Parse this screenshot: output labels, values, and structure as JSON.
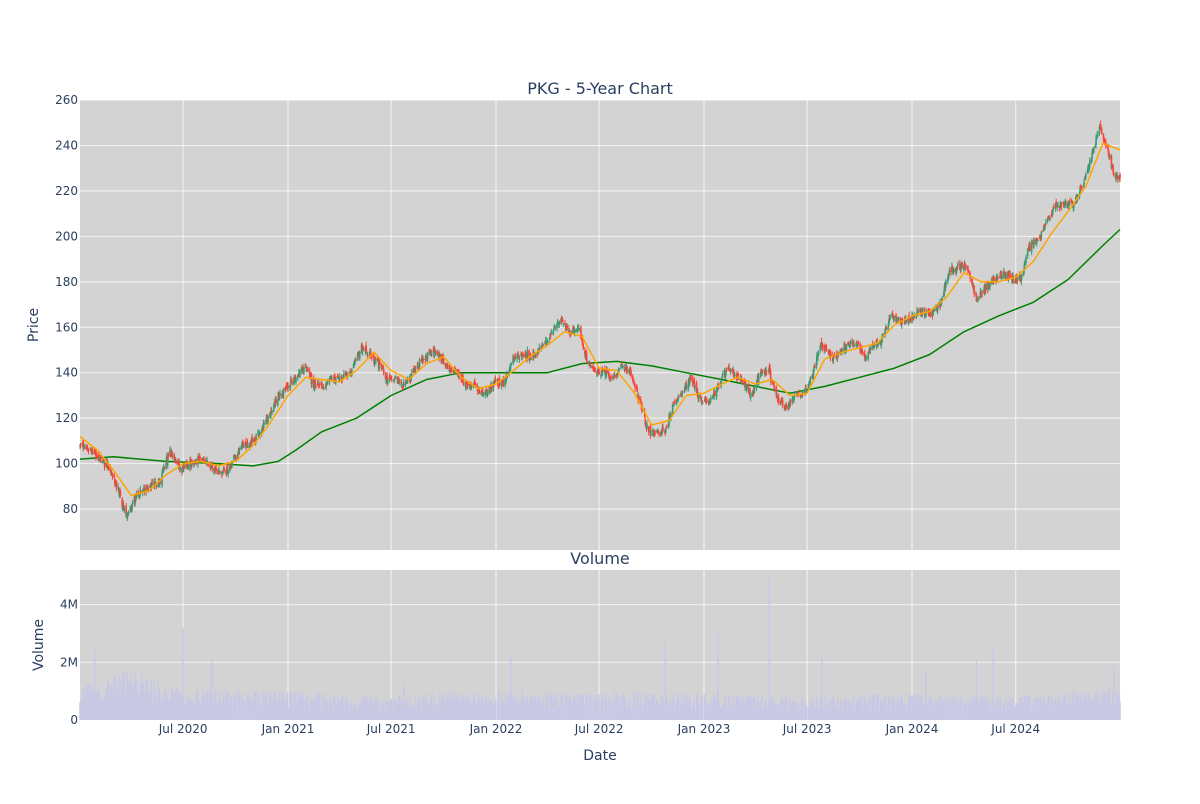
{
  "chart_data": [
    {
      "type": "candlestick",
      "title": "PKG - 5-Year Chart",
      "ylabel": "Price",
      "xlim": [
        "2020-01-02",
        "2024-12-31"
      ],
      "ylim": [
        62,
        260
      ],
      "y_ticks": [
        80,
        100,
        120,
        140,
        160,
        180,
        200,
        220,
        240,
        260
      ],
      "grid": true,
      "colors": {
        "up": "#3d9970",
        "down": "#ff4136",
        "ma_short": "#ffa500",
        "ma_long": "#008000",
        "plot_bg": "#d3d3d3"
      },
      "close_path": [
        [
          "2020-01-02",
          108
        ],
        [
          "2020-01-20",
          106
        ],
        [
          "2020-02-10",
          102
        ],
        [
          "2020-02-25",
          96
        ],
        [
          "2020-03-10",
          88
        ],
        [
          "2020-03-23",
          76
        ],
        [
          "2020-04-05",
          84
        ],
        [
          "2020-04-20",
          88
        ],
        [
          "2020-05-05",
          90
        ],
        [
          "2020-05-20",
          92
        ],
        [
          "2020-06-08",
          106
        ],
        [
          "2020-06-25",
          98
        ],
        [
          "2020-07-15",
          100
        ],
        [
          "2020-08-01",
          102
        ],
        [
          "2020-08-15",
          100
        ],
        [
          "2020-09-01",
          96
        ],
        [
          "2020-09-20",
          98
        ],
        [
          "2020-10-10",
          107
        ],
        [
          "2020-10-30",
          109
        ],
        [
          "2020-11-15",
          115
        ],
        [
          "2020-12-01",
          122
        ],
        [
          "2020-12-15",
          130
        ],
        [
          "2020-12-31",
          134
        ],
        [
          "2021-01-15",
          138
        ],
        [
          "2021-02-01",
          143
        ],
        [
          "2021-02-15",
          134
        ],
        [
          "2021-03-05",
          134
        ],
        [
          "2021-03-20",
          138
        ],
        [
          "2021-04-05",
          137
        ],
        [
          "2021-04-20",
          140
        ],
        [
          "2021-05-10",
          151
        ],
        [
          "2021-05-25",
          148
        ],
        [
          "2021-06-10",
          144
        ],
        [
          "2021-06-25",
          137
        ],
        [
          "2021-07-10",
          137
        ],
        [
          "2021-07-25",
          134
        ],
        [
          "2021-08-10",
          141
        ],
        [
          "2021-08-25",
          145
        ],
        [
          "2021-09-10",
          150
        ],
        [
          "2021-09-25",
          147
        ],
        [
          "2021-10-10",
          142
        ],
        [
          "2021-10-25",
          140
        ],
        [
          "2021-11-10",
          135
        ],
        [
          "2021-11-25",
          134
        ],
        [
          "2021-12-10",
          131
        ],
        [
          "2021-12-31",
          136
        ],
        [
          "2022-01-15",
          135
        ],
        [
          "2022-02-01",
          147
        ],
        [
          "2022-02-20",
          147
        ],
        [
          "2022-03-10",
          148
        ],
        [
          "2022-03-25",
          152
        ],
        [
          "2022-04-10",
          158
        ],
        [
          "2022-04-25",
          164
        ],
        [
          "2022-05-10",
          157
        ],
        [
          "2022-05-25",
          160
        ],
        [
          "2022-06-10",
          145
        ],
        [
          "2022-06-25",
          140
        ],
        [
          "2022-07-10",
          140
        ],
        [
          "2022-07-25",
          137
        ],
        [
          "2022-08-10",
          143
        ],
        [
          "2022-08-25",
          140
        ],
        [
          "2022-09-10",
          128
        ],
        [
          "2022-09-25",
          114
        ],
        [
          "2022-10-10",
          113
        ],
        [
          "2022-10-25",
          115
        ],
        [
          "2022-11-10",
          126
        ],
        [
          "2022-11-25",
          132
        ],
        [
          "2022-12-10",
          138
        ],
        [
          "2022-12-25",
          128
        ],
        [
          "2023-01-10",
          128
        ],
        [
          "2023-01-25",
          133
        ],
        [
          "2023-02-10",
          142
        ],
        [
          "2023-02-25",
          139
        ],
        [
          "2023-03-10",
          137
        ],
        [
          "2023-03-25",
          130
        ],
        [
          "2023-04-10",
          140
        ],
        [
          "2023-04-25",
          141
        ],
        [
          "2023-05-10",
          129
        ],
        [
          "2023-05-25",
          125
        ],
        [
          "2023-06-10",
          130
        ],
        [
          "2023-06-25",
          131
        ],
        [
          "2023-07-10",
          138
        ],
        [
          "2023-07-25",
          153
        ],
        [
          "2023-08-10",
          147
        ],
        [
          "2023-08-25",
          148
        ],
        [
          "2023-09-10",
          152
        ],
        [
          "2023-09-25",
          153
        ],
        [
          "2023-10-10",
          147
        ],
        [
          "2023-10-25",
          152
        ],
        [
          "2023-11-10",
          155
        ],
        [
          "2023-11-25",
          166
        ],
        [
          "2023-12-10",
          163
        ],
        [
          "2023-12-31",
          164
        ],
        [
          "2024-01-15",
          167
        ],
        [
          "2024-02-01",
          166
        ],
        [
          "2024-02-20",
          170
        ],
        [
          "2024-03-05",
          184
        ],
        [
          "2024-03-20",
          186
        ],
        [
          "2024-04-05",
          187
        ],
        [
          "2024-04-25",
          172
        ],
        [
          "2024-05-10",
          178
        ],
        [
          "2024-05-25",
          181
        ],
        [
          "2024-06-10",
          183
        ],
        [
          "2024-06-25",
          182
        ],
        [
          "2024-07-10",
          181
        ],
        [
          "2024-07-25",
          196
        ],
        [
          "2024-08-10",
          198
        ],
        [
          "2024-08-25",
          207
        ],
        [
          "2024-09-10",
          213
        ],
        [
          "2024-09-25",
          214
        ],
        [
          "2024-10-10",
          214
        ],
        [
          "2024-10-25",
          222
        ],
        [
          "2024-11-10",
          234
        ],
        [
          "2024-11-25",
          248
        ],
        [
          "2024-12-10",
          238
        ],
        [
          "2024-12-20",
          228
        ],
        [
          "2024-12-31",
          225
        ]
      ],
      "ma_short": [
        [
          "2020-01-02",
          112
        ],
        [
          "2020-02-01",
          106
        ],
        [
          "2020-03-01",
          97
        ],
        [
          "2020-04-01",
          86
        ],
        [
          "2020-05-01",
          88
        ],
        [
          "2020-06-01",
          95
        ],
        [
          "2020-07-01",
          100
        ],
        [
          "2020-08-01",
          101
        ],
        [
          "2020-09-01",
          99
        ],
        [
          "2020-10-01",
          101
        ],
        [
          "2020-11-01",
          108
        ],
        [
          "2020-12-01",
          118
        ],
        [
          "2021-01-01",
          130
        ],
        [
          "2021-02-01",
          138
        ],
        [
          "2021-03-01",
          137
        ],
        [
          "2021-04-01",
          136
        ],
        [
          "2021-05-01",
          141
        ],
        [
          "2021-06-01",
          149
        ],
        [
          "2021-07-01",
          141
        ],
        [
          "2021-08-01",
          137
        ],
        [
          "2021-09-01",
          144
        ],
        [
          "2021-10-01",
          147
        ],
        [
          "2021-11-01",
          138
        ],
        [
          "2021-12-01",
          133
        ],
        [
          "2022-01-01",
          135
        ],
        [
          "2022-02-01",
          141
        ],
        [
          "2022-03-01",
          147
        ],
        [
          "2022-04-01",
          152
        ],
        [
          "2022-05-01",
          158
        ],
        [
          "2022-06-01",
          156
        ],
        [
          "2022-07-01",
          142
        ],
        [
          "2022-08-01",
          141
        ],
        [
          "2022-09-01",
          131
        ],
        [
          "2022-10-01",
          117
        ],
        [
          "2022-11-01",
          119
        ],
        [
          "2022-12-01",
          130
        ],
        [
          "2023-01-01",
          131
        ],
        [
          "2023-02-01",
          135
        ],
        [
          "2023-03-01",
          138
        ],
        [
          "2023-04-01",
          135
        ],
        [
          "2023-05-01",
          137
        ],
        [
          "2023-06-01",
          130
        ],
        [
          "2023-07-01",
          131
        ],
        [
          "2023-08-01",
          146
        ],
        [
          "2023-09-01",
          149
        ],
        [
          "2023-10-01",
          151
        ],
        [
          "2023-11-01",
          153
        ],
        [
          "2023-12-01",
          161
        ],
        [
          "2024-01-01",
          165
        ],
        [
          "2024-02-01",
          167
        ],
        [
          "2024-03-01",
          173
        ],
        [
          "2024-04-01",
          184
        ],
        [
          "2024-05-01",
          180
        ],
        [
          "2024-06-01",
          180
        ],
        [
          "2024-07-01",
          182
        ],
        [
          "2024-08-01",
          189
        ],
        [
          "2024-09-01",
          201
        ],
        [
          "2024-10-01",
          211
        ],
        [
          "2024-11-01",
          222
        ],
        [
          "2024-12-01",
          241
        ],
        [
          "2024-12-31",
          238
        ]
      ],
      "ma_long": [
        [
          "2020-01-02",
          102
        ],
        [
          "2020-03-01",
          103
        ],
        [
          "2020-06-01",
          101
        ],
        [
          "2020-09-01",
          100
        ],
        [
          "2020-11-01",
          99
        ],
        [
          "2020-12-15",
          101
        ],
        [
          "2021-01-15",
          106
        ],
        [
          "2021-03-01",
          114
        ],
        [
          "2021-05-01",
          120
        ],
        [
          "2021-07-01",
          130
        ],
        [
          "2021-09-01",
          137
        ],
        [
          "2021-11-01",
          140
        ],
        [
          "2022-01-01",
          140
        ],
        [
          "2022-04-01",
          140
        ],
        [
          "2022-06-01",
          144
        ],
        [
          "2022-08-01",
          145
        ],
        [
          "2022-10-01",
          143
        ],
        [
          "2022-12-01",
          140
        ],
        [
          "2023-02-01",
          137
        ],
        [
          "2023-04-01",
          134
        ],
        [
          "2023-06-01",
          131
        ],
        [
          "2023-08-01",
          134
        ],
        [
          "2023-10-01",
          138
        ],
        [
          "2023-12-01",
          142
        ],
        [
          "2024-02-01",
          148
        ],
        [
          "2024-04-01",
          158
        ],
        [
          "2024-06-01",
          165
        ],
        [
          "2024-08-01",
          171
        ],
        [
          "2024-10-01",
          181
        ],
        [
          "2024-12-01",
          196
        ],
        [
          "2024-12-31",
          203
        ]
      ]
    },
    {
      "type": "bar",
      "title": "Volume",
      "xlabel": "Date",
      "ylabel": "Volume",
      "ylim": [
        0,
        5200000
      ],
      "y_ticks": [
        0,
        2000000,
        4000000
      ],
      "y_tick_labels": [
        "0",
        "2M",
        "4M"
      ],
      "x_ticks": [
        "2020-07-01",
        "2021-01-01",
        "2021-07-01",
        "2022-01-01",
        "2022-07-01",
        "2023-01-01",
        "2023-07-01",
        "2024-01-01",
        "2024-07-01"
      ],
      "x_tick_labels": [
        "Jul 2020",
        "Jan 2021",
        "Jul 2021",
        "Jan 2022",
        "Jul 2022",
        "Jan 2023",
        "Jul 2023",
        "Jan 2024",
        "Jul 2024"
      ],
      "grid": true,
      "bar_color": "#c8c8e6",
      "base_level": [
        [
          "2020-01-02",
          900000
        ],
        [
          "2020-04-01",
          1300000
        ],
        [
          "2020-07-01",
          800000
        ],
        [
          "2021-01-01",
          750000
        ],
        [
          "2021-07-01",
          650000
        ],
        [
          "2022-01-01",
          800000
        ],
        [
          "2022-07-01",
          700000
        ],
        [
          "2023-01-01",
          700000
        ],
        [
          "2023-07-01",
          650000
        ],
        [
          "2024-01-01",
          700000
        ],
        [
          "2024-07-01",
          600000
        ],
        [
          "2024-12-31",
          850000
        ]
      ],
      "spikes": [
        [
          "2020-01-28",
          2400000
        ],
        [
          "2020-04-20",
          1800000
        ],
        [
          "2020-07-01",
          3200000
        ],
        [
          "2020-08-20",
          2100000
        ],
        [
          "2021-07-23",
          1300000
        ],
        [
          "2022-01-27",
          2200000
        ],
        [
          "2022-07-28",
          1000000
        ],
        [
          "2022-10-25",
          2700000
        ],
        [
          "2023-01-26",
          3100000
        ],
        [
          "2023-04-25",
          4900000
        ],
        [
          "2023-07-27",
          2200000
        ],
        [
          "2024-01-25",
          1700000
        ],
        [
          "2024-04-23",
          2100000
        ],
        [
          "2024-05-23",
          2500000
        ],
        [
          "2024-12-20",
          1900000
        ]
      ]
    }
  ]
}
